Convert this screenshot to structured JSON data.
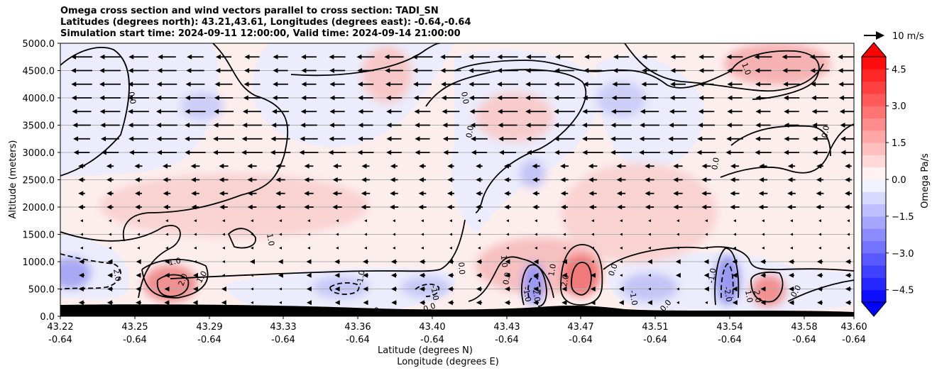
{
  "chart_data": {
    "type": "contour",
    "title_lines": [
      "Omega cross section and wind vectors parallel to cross section: TADI_SN",
      "Latitudes (degrees north): 43.21,43.61, Longitudes (degrees east): -0.64,-0.64",
      "Simulation start time: 2024-09-11 12:00:00, Valid time: 2024-09-14 21:00:00"
    ],
    "xlabel_line1": "Latitude (degrees N)",
    "xlabel_line2": "Longitude (degrees E)",
    "ylabel": "Altitude (meters)",
    "x_ticks": [
      {
        "lat": "43.22",
        "lon": "-0.64"
      },
      {
        "lat": "43.25",
        "lon": "-0.64"
      },
      {
        "lat": "43.29",
        "lon": "-0.64"
      },
      {
        "lat": "43.33",
        "lon": "-0.64"
      },
      {
        "lat": "43.36",
        "lon": "-0.64"
      },
      {
        "lat": "43.40",
        "lon": "-0.64"
      },
      {
        "lat": "43.43",
        "lon": "-0.64"
      },
      {
        "lat": "43.47",
        "lon": "-0.64"
      },
      {
        "lat": "43.51",
        "lon": "-0.64"
      },
      {
        "lat": "43.54",
        "lon": "-0.64"
      },
      {
        "lat": "43.58",
        "lon": "-0.64"
      },
      {
        "lat": "43.60",
        "lon": "-0.64"
      }
    ],
    "y_ticks": [
      "0.0",
      "500.0",
      "1000.0",
      "1500.0",
      "2000.0",
      "2500.0",
      "3000.0",
      "3500.0",
      "4000.0",
      "4500.0",
      "5000.0"
    ],
    "ylim": [
      0,
      5000
    ],
    "grid": "horizontal",
    "colorbar": {
      "label": "Omega Pa/s",
      "range": [
        -5,
        5
      ],
      "ticks": [
        "4.5",
        "3.0",
        "1.5",
        "0.0",
        "−1.5",
        "−3.0",
        "−4.5"
      ],
      "tick_values": [
        4.5,
        3.0,
        1.5,
        0.0,
        -1.5,
        -3.0,
        -4.5
      ],
      "extend": "both",
      "positive_color": "#ff0000",
      "negative_color": "#0000ff"
    },
    "quiver_key": "10 m/s",
    "contour_levels_labeled": [
      "0.0",
      "1.0",
      "-1.0",
      "2.0",
      "-2.0"
    ],
    "wind_direction": "predominantly southward (leftward) aloft, weak near surface",
    "regions": [
      {
        "lat": 43.26,
        "alt": 550,
        "omega": 2.5
      },
      {
        "lat": 43.47,
        "alt": 800,
        "omega": 3.0
      },
      {
        "lat": 43.44,
        "alt": 400,
        "omega": -2.5
      },
      {
        "lat": 43.54,
        "alt": 600,
        "omega": -2.5
      },
      {
        "lat": 43.555,
        "alt": 450,
        "omega": 2.0
      },
      {
        "lat": 43.22,
        "alt": 750,
        "omega": -2.0
      },
      {
        "lat": 43.36,
        "alt": 450,
        "omega": -1.2
      },
      {
        "lat": 43.4,
        "alt": 450,
        "omega": -1.2
      },
      {
        "lat": 43.565,
        "alt": 4600,
        "omega": 1.5
      },
      {
        "lat": 43.35,
        "alt": 4400,
        "omega": 0.8
      },
      {
        "lat": 43.3,
        "alt": 1800,
        "omega": 0.8
      }
    ]
  },
  "colors": {
    "terrain": "#000000",
    "contour": "#000000",
    "background_field": "#fde8e8"
  }
}
